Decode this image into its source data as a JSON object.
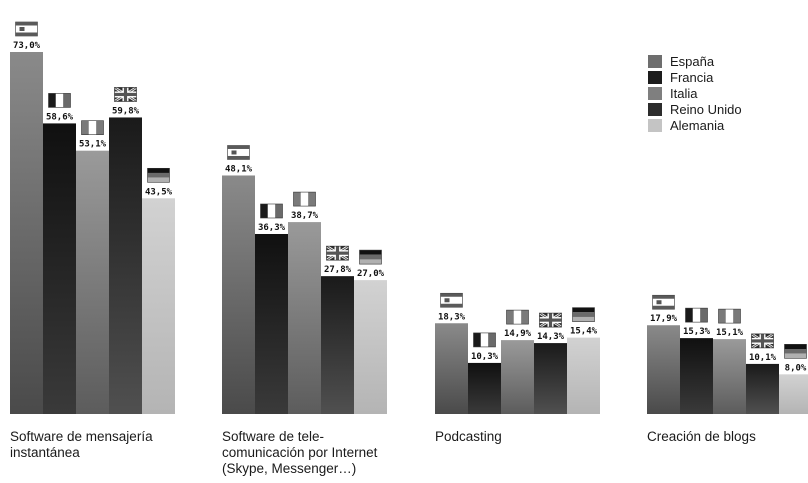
{
  "chart_data": {
    "type": "bar",
    "title": "",
    "xlabel": "",
    "ylabel": "",
    "ylim": [
      0,
      73
    ],
    "grid": false,
    "legend_position": "top-right",
    "categories": [
      [
        "Software de mensajería",
        "instantánea"
      ],
      [
        "Software de tele-",
        "comunicación por Internet",
        "(Skype, Messenger…)"
      ],
      [
        "Podcasting"
      ],
      [
        "Creación de blogs"
      ]
    ],
    "series": [
      {
        "name": "España",
        "flag": "spain-flag",
        "values": [
          73.0,
          48.1,
          18.3,
          17.9
        ],
        "labels": [
          "73,0%",
          "48,1%",
          "18,3%",
          "17,9%"
        ]
      },
      {
        "name": "Francia",
        "flag": "france-flag",
        "values": [
          58.6,
          36.3,
          10.3,
          15.3
        ],
        "labels": [
          "58,6%",
          "36,3%",
          "10,3%",
          "15,3%"
        ]
      },
      {
        "name": "Italia",
        "flag": "italy-flag",
        "values": [
          53.1,
          38.7,
          14.9,
          15.1
        ],
        "labels": [
          "53,1%",
          "38,7%",
          "14,9%",
          "15,1%"
        ]
      },
      {
        "name": "Reino Unido",
        "flag": "uk-flag",
        "values": [
          59.8,
          27.8,
          14.3,
          10.1
        ],
        "labels": [
          "59,8%",
          "27,8%",
          "14,3%",
          "10,1%"
        ]
      },
      {
        "name": "Alemania",
        "flag": "germany-flag",
        "values": [
          43.5,
          27.0,
          15.4,
          8.0
        ],
        "labels": [
          "43,5%",
          "27,0%",
          "15,4%",
          "8,0%"
        ]
      }
    ],
    "colors": [
      "#6e6e6e",
      "#1c1c1c",
      "#7f7f7f",
      "#2c2c2c",
      "#c4c4c4"
    ]
  }
}
